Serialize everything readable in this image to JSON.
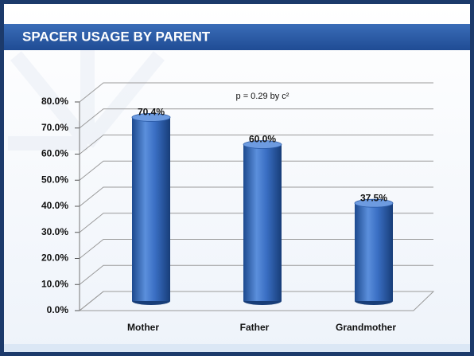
{
  "chart_data": {
    "type": "bar",
    "title": "SPACER USAGE BY PARENT",
    "annotation": "p = 0.29 by c²",
    "categories": [
      "Mother",
      "Father",
      "Grandmother"
    ],
    "values": [
      70.4,
      60.0,
      37.5
    ],
    "value_labels": [
      "70.4%",
      "60.0%",
      "37.5%"
    ],
    "color": "#3a6fc4",
    "ylim": [
      0,
      80
    ],
    "yticks": [
      {
        "value": 0,
        "label": "0.0%"
      },
      {
        "value": 10,
        "label": "10.0%"
      },
      {
        "value": 20,
        "label": "20.0%"
      },
      {
        "value": 30,
        "label": "30.0%"
      },
      {
        "value": 40,
        "label": "40.0%"
      },
      {
        "value": 50,
        "label": "50.0%"
      },
      {
        "value": 60,
        "label": "60.0%"
      },
      {
        "value": 70,
        "label": "70.0%"
      },
      {
        "value": 80,
        "label": "80.0%"
      }
    ],
    "grid": true
  }
}
